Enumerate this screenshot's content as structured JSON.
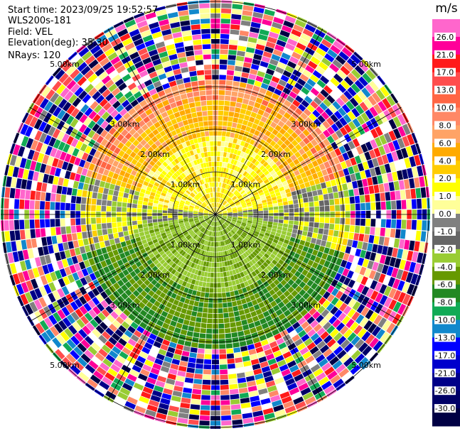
{
  "header": {
    "start_time": "Start time: 2023/09/25 19:52:57",
    "instrument": "WLS200s-181",
    "field": "Field: VEL",
    "elevation": "Elevation(deg): 35.30",
    "nrays": "NRays: 120"
  },
  "chart_data": {
    "type": "heatmap",
    "projection": "polar",
    "n_rays": 120,
    "range_rings": [
      1,
      2,
      3,
      5
    ],
    "ring_labels": [
      "1.00km",
      "2.00km",
      "3.00km",
      "5.00km"
    ],
    "colorbar": {
      "unit": "m/s",
      "ticks": [
        "26.0",
        "21.0",
        "17.0",
        "13.0",
        "10.0",
        "8.0",
        "6.0",
        "4.0",
        "2.0",
        "1.0",
        "0.0",
        "-1.0",
        "-2.0",
        "-4.0",
        "-6.0",
        "-8.0",
        "-10.0",
        "-13.0",
        "-17.0",
        "-21.0",
        "-26.0",
        "-30.0"
      ],
      "colors": [
        "#ff66cc",
        "#ff0099",
        "#ff1a1a",
        "#ff4d4d",
        "#ff6644",
        "#ff8866",
        "#ffa366",
        "#ffaa00",
        "#ffcc00",
        "#ffff00",
        "#ffff99",
        "#808080",
        "#666666",
        "#99cc33",
        "#669900",
        "#228822",
        "#11aa55",
        "#1188cc",
        "#0000ff",
        "#0000cc",
        "#000088",
        "#000066",
        "#000044"
      ]
    }
  }
}
